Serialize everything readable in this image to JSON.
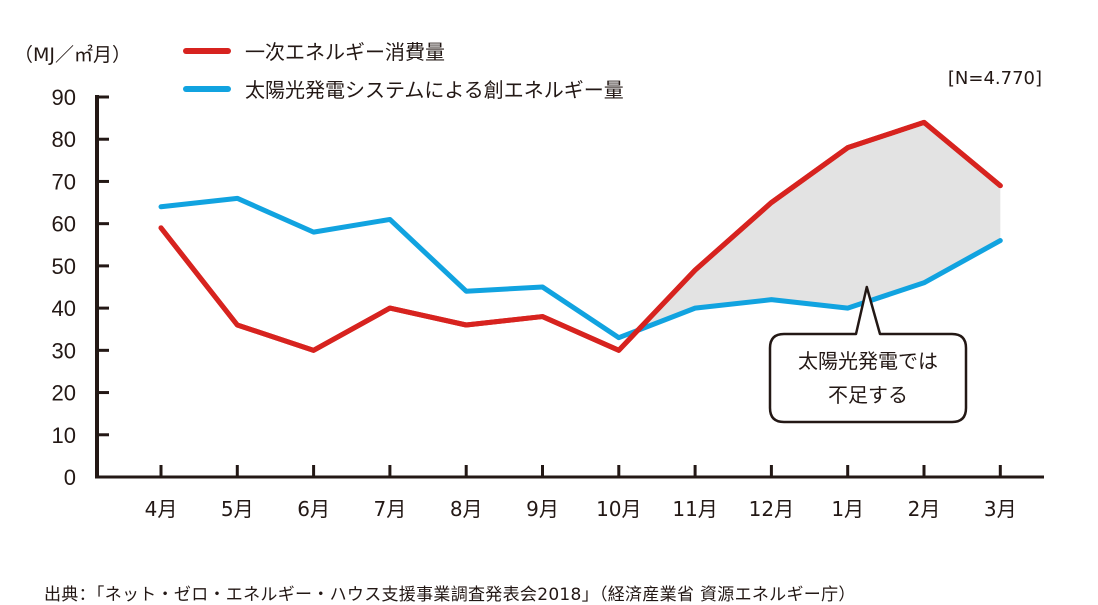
{
  "chart_data": {
    "type": "line",
    "unit_label": "（MJ／㎡月）",
    "sample_note": "[N=4.770]",
    "categories": [
      "4月",
      "5月",
      "6月",
      "7月",
      "8月",
      "9月",
      "10月",
      "11月",
      "12月",
      "1月",
      "2月",
      "3月"
    ],
    "ylim": [
      0,
      90
    ],
    "yticks": [
      0,
      10,
      20,
      30,
      40,
      50,
      60,
      70,
      80,
      90
    ],
    "grid": false,
    "legend_position": "top-left",
    "series": [
      {
        "name": "一次エネルギー消費量",
        "color": "#d7231f",
        "values": [
          59,
          36,
          30,
          40,
          36,
          38,
          30,
          49,
          65,
          78,
          84,
          69
        ]
      },
      {
        "name": "太陽光発電システムによる創エネルギー量",
        "color": "#11a3e0",
        "values": [
          64,
          66,
          58,
          61,
          44,
          45,
          33,
          40,
          42,
          40,
          46,
          56
        ]
      }
    ],
    "shaded_gap": {
      "from_index": 6,
      "to_index": 11,
      "color": "#e3e3e3"
    },
    "annotation": {
      "lines": [
        "太陽光発電では",
        "不足する"
      ],
      "pointer_month_index": 9.25,
      "pointer_value": 45
    }
  },
  "source": "出典：「ネット・ゼロ・エネルギー・ハウス支援事業調査発表会2018」（経済産業省 資源エネルギー庁）"
}
